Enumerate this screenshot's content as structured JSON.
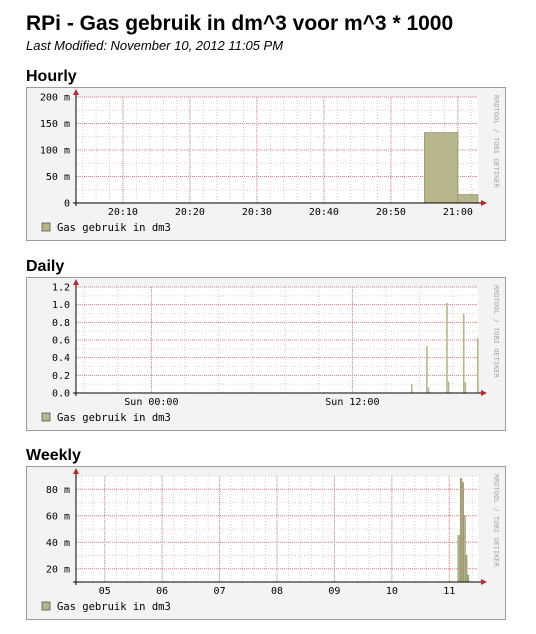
{
  "page": {
    "title": "RPi - Gas gebruik in dm^3 voor m^3 * 1000",
    "last_modified": "Last Modified: November 10, 2012 11:05 PM"
  },
  "watermark": "RRDTOOL / TOBI OETIKER",
  "chart_data": [
    {
      "heading": "Hourly",
      "type": "area",
      "legend": "Gas gebruik in dm3",
      "legend_position": "bottom-left",
      "series_color": "#b7b58c",
      "grid": true,
      "x_ticks": [
        "20:10",
        "20:20",
        "20:30",
        "20:40",
        "20:50",
        "21:00"
      ],
      "x_tick_minutes": [
        10,
        20,
        30,
        40,
        50,
        60
      ],
      "xlim": [
        3,
        63
      ],
      "y_ticks": [
        "0",
        "50 m",
        "100 m",
        "150 m",
        "200 m"
      ],
      "y_tick_values": [
        0,
        50,
        100,
        150,
        200
      ],
      "ylim": [
        0,
        200
      ],
      "bars": [
        {
          "x0": 55.0,
          "x1": 60.0,
          "value": 133
        },
        {
          "x0": 60.0,
          "x1": 65.0,
          "value": 16
        }
      ]
    },
    {
      "heading": "Daily",
      "type": "area",
      "legend": "Gas gebruik in dm3",
      "legend_position": "bottom-left",
      "series_color": "#b7b58c",
      "grid": true,
      "x_ticks": [
        "Sun 00:00",
        "Sun 12:00"
      ],
      "x_tick_hours": [
        24,
        36
      ],
      "xlim": [
        19.5,
        43.5
      ],
      "y_ticks": [
        "0.0",
        "0.2",
        "0.4",
        "0.6",
        "0.8",
        "1.0",
        "1.2"
      ],
      "y_tick_values": [
        0,
        0.2,
        0.4,
        0.6,
        0.8,
        1.0,
        1.2
      ],
      "ylim": [
        0,
        1.2
      ],
      "spikes": [
        {
          "x": 39.5,
          "value": 0.1
        },
        {
          "x": 40.4,
          "value": 0.53
        },
        {
          "x": 40.5,
          "value": 0.06
        },
        {
          "x": 41.6,
          "value": 1.02
        },
        {
          "x": 41.7,
          "value": 0.13
        },
        {
          "x": 42.6,
          "value": 0.9
        },
        {
          "x": 42.7,
          "value": 0.12
        },
        {
          "x": 43.6,
          "value": 0.62
        },
        {
          "x": 43.7,
          "value": 0.07
        },
        {
          "x": 44.7,
          "value": 0.13
        }
      ]
    },
    {
      "heading": "Weekly",
      "type": "area",
      "legend": "Gas gebruik in dm3",
      "legend_position": "bottom-left",
      "series_color": "#b7b58c",
      "grid": true,
      "x_ticks": [
        "05",
        "06",
        "07",
        "08",
        "09",
        "10",
        "11"
      ],
      "x_tick_days": [
        5,
        6,
        7,
        8,
        9,
        10,
        11
      ],
      "xlim": [
        4.5,
        11.5
      ],
      "y_ticks": [
        "20 m",
        "40 m",
        "60 m",
        "80 m"
      ],
      "y_tick_values": [
        20,
        40,
        60,
        80
      ],
      "ylim": [
        10,
        90
      ],
      "bars": [
        {
          "x0": 11.15,
          "x1": 11.19,
          "value": 45
        },
        {
          "x0": 11.19,
          "x1": 11.22,
          "value": 88
        },
        {
          "x0": 11.22,
          "x1": 11.25,
          "value": 85
        },
        {
          "x0": 11.25,
          "x1": 11.28,
          "value": 60
        },
        {
          "x0": 11.28,
          "x1": 11.31,
          "value": 30
        },
        {
          "x0": 11.31,
          "x1": 11.34,
          "value": 15
        }
      ]
    }
  ]
}
